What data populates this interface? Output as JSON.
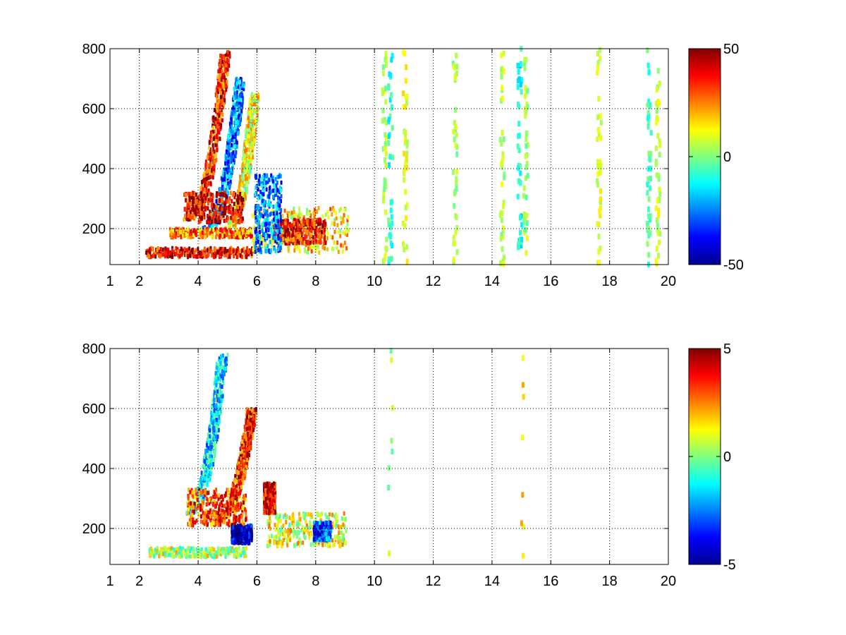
{
  "chart_data": [
    {
      "type": "heatmap",
      "title": "",
      "xlabel": "",
      "ylabel": "",
      "xlim": [
        1,
        20
      ],
      "ylim": [
        80,
        800
      ],
      "x_ticks": [
        "1",
        "2",
        "4",
        "6",
        "8",
        "10",
        "12",
        "14",
        "16",
        "18",
        "20"
      ],
      "y_ticks": [
        "200",
        "400",
        "600",
        "800"
      ],
      "grid": true,
      "colormap": "jet",
      "colorbar": {
        "min": -50,
        "max": 50,
        "ticks": [
          "50",
          "0",
          "-50"
        ]
      },
      "regions": [
        {
          "shape": "ridge",
          "x0": 3.6,
          "x1": 4.9,
          "y0": 230,
          "y1": 790,
          "value": 35
        },
        {
          "shape": "ridge",
          "x0": 4.2,
          "x1": 5.4,
          "y0": 200,
          "y1": 700,
          "value": -25
        },
        {
          "shape": "ridge",
          "x0": 4.9,
          "x1": 5.9,
          "y0": 200,
          "y1": 650,
          "value": 10
        },
        {
          "shape": "band",
          "x0": 2.2,
          "x1": 5.8,
          "y": 120,
          "value": 38
        },
        {
          "shape": "band",
          "x0": 3.0,
          "x1": 5.8,
          "y": 185,
          "value": 25
        },
        {
          "shape": "blob",
          "x0": 3.5,
          "x1": 5.5,
          "y0": 220,
          "y1": 320,
          "value": 40
        },
        {
          "shape": "blob",
          "x0": 5.8,
          "x1": 9.1,
          "y0": 120,
          "y1": 270,
          "value": 15
        },
        {
          "shape": "blob",
          "x0": 6.6,
          "x1": 8.3,
          "y0": 150,
          "y1": 230,
          "value": 35
        },
        {
          "shape": "blob",
          "x0": 5.9,
          "x1": 6.8,
          "y0": 120,
          "y1": 380,
          "value": -25
        }
      ],
      "noise_columns": [
        {
          "x": 10.3,
          "value": 5
        },
        {
          "x": 10.5,
          "value": -8
        },
        {
          "x": 11.0,
          "value": 10
        },
        {
          "x": 12.7,
          "value": 4
        },
        {
          "x": 14.3,
          "value": 6
        },
        {
          "x": 14.9,
          "value": -10
        },
        {
          "x": 15.1,
          "value": 3
        },
        {
          "x": 17.6,
          "value": 8
        },
        {
          "x": 19.3,
          "value": -5
        },
        {
          "x": 19.6,
          "value": 7
        }
      ]
    },
    {
      "type": "heatmap",
      "title": "",
      "xlabel": "",
      "ylabel": "",
      "xlim": [
        1,
        20
      ],
      "ylim": [
        80,
        800
      ],
      "x_ticks": [
        "1",
        "2",
        "4",
        "6",
        "8",
        "10",
        "12",
        "14",
        "16",
        "18",
        "20"
      ],
      "y_ticks": [
        "200",
        "400",
        "600",
        "800"
      ],
      "grid": true,
      "colormap": "jet",
      "colorbar": {
        "min": -5,
        "max": 5,
        "ticks": [
          "5",
          "0",
          "-5"
        ]
      },
      "regions": [
        {
          "shape": "ridge",
          "x0": 3.6,
          "x1": 4.8,
          "y0": 250,
          "y1": 780,
          "value": -1.5
        },
        {
          "shape": "ridge",
          "x0": 4.6,
          "x1": 5.8,
          "y0": 230,
          "y1": 600,
          "value": 3.5
        },
        {
          "shape": "blob",
          "x0": 3.6,
          "x1": 5.6,
          "y0": 210,
          "y1": 330,
          "value": 3.0
        },
        {
          "shape": "band",
          "x0": 2.3,
          "x1": 5.6,
          "y": 120,
          "value": 0.5
        },
        {
          "shape": "blob",
          "x0": 5.1,
          "x1": 5.8,
          "y0": 150,
          "y1": 210,
          "value": -4.5
        },
        {
          "shape": "blob",
          "x0": 6.3,
          "x1": 9.0,
          "y0": 140,
          "y1": 250,
          "value": 1.0
        },
        {
          "shape": "blob",
          "x0": 7.9,
          "x1": 8.5,
          "y0": 160,
          "y1": 220,
          "value": -3.0
        },
        {
          "shape": "blob",
          "x0": 6.2,
          "x1": 6.6,
          "y0": 250,
          "y1": 350,
          "value": 4.0
        }
      ],
      "noise_columns": [
        {
          "x": 10.5,
          "value": 0.3
        },
        {
          "x": 15.0,
          "value": 1.5
        }
      ]
    }
  ]
}
